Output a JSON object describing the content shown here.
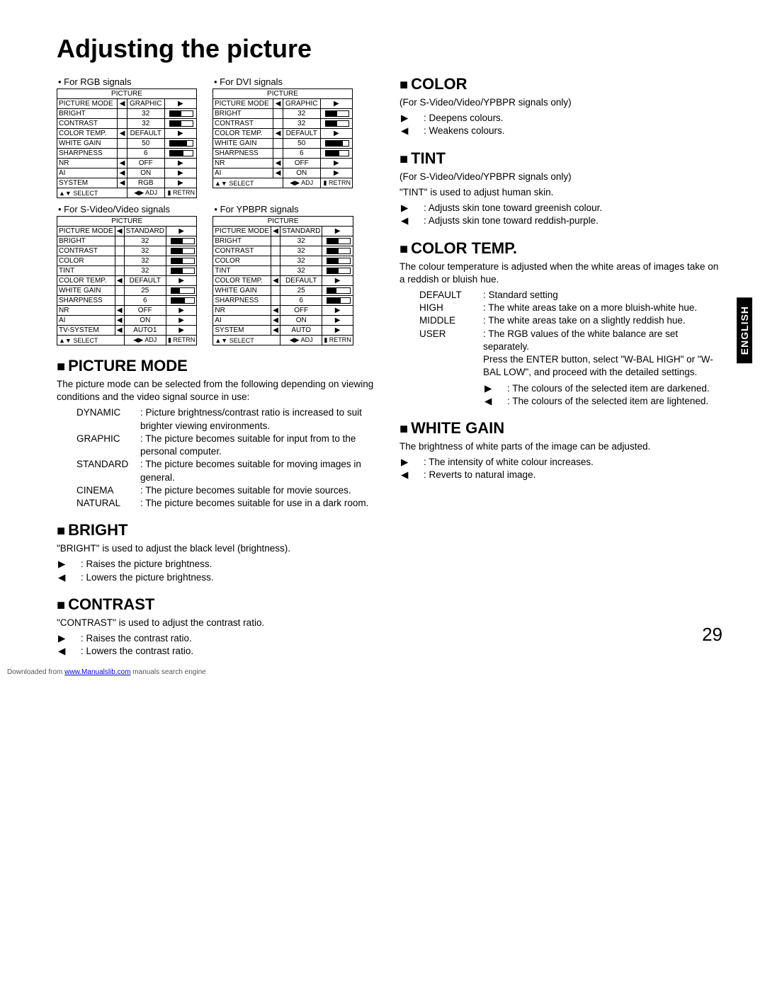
{
  "page": {
    "title": "Adjusting the picture",
    "number": "29",
    "lang_tab": "ENGLISH"
  },
  "footer": {
    "prefix": "Downloaded from ",
    "link": "www.Manualslib.com",
    "suffix": " manuals search engine"
  },
  "osd_header": "PICTURE",
  "osd_bottom": {
    "select": "SELECT",
    "adj": "ADJ",
    "retrn": "RETRN"
  },
  "tables": {
    "rgb": {
      "caption": "For RGB signals",
      "rows": [
        {
          "label": "PICTURE MODE",
          "left": "◀",
          "value": "GRAPHIC",
          "right": "▶"
        },
        {
          "label": "BRIGHT",
          "value": "32",
          "slider": 50
        },
        {
          "label": "CONTRAST",
          "value": "32",
          "slider": 50
        },
        {
          "label": "COLOR TEMP.",
          "left": "◀",
          "value": "DEFAULT",
          "right": "▶"
        },
        {
          "label": "WHITE GAIN",
          "value": "50",
          "slider": 75
        },
        {
          "label": "SHARPNESS",
          "value": "6",
          "slider": 60
        },
        {
          "label": "NR",
          "left": "◀",
          "value": "OFF",
          "right": "▶"
        },
        {
          "label": "AI",
          "left": "◀",
          "value": "ON",
          "right": "▶"
        },
        {
          "label": "SYSTEM",
          "left": "◀",
          "value": "RGB",
          "right": "▶"
        }
      ]
    },
    "dvi": {
      "caption": "For DVI signals",
      "rows": [
        {
          "label": "PICTURE MODE",
          "left": "◀",
          "value": "GRAPHIC",
          "right": "▶"
        },
        {
          "label": "BRIGHT",
          "value": "32",
          "slider": 50
        },
        {
          "label": "CONTRAST",
          "value": "32",
          "slider": 50
        },
        {
          "label": "COLOR TEMP.",
          "left": "◀",
          "value": "DEFAULT",
          "right": "▶"
        },
        {
          "label": "WHITE GAIN",
          "value": "50",
          "slider": 75
        },
        {
          "label": "SHARPNESS",
          "value": "6",
          "slider": 60
        },
        {
          "label": "NR",
          "left": "◀",
          "value": "OFF",
          "right": "▶"
        },
        {
          "label": "AI",
          "left": "◀",
          "value": "ON",
          "right": "▶"
        }
      ]
    },
    "svideo": {
      "caption": "For S-Video/Video signals",
      "rows": [
        {
          "label": "PICTURE MODE",
          "left": "◀",
          "value": "STANDARD",
          "right": "▶"
        },
        {
          "label": "BRIGHT",
          "value": "32",
          "slider": 50
        },
        {
          "label": "CONTRAST",
          "value": "32",
          "slider": 50
        },
        {
          "label": "COLOR",
          "value": "32",
          "slider": 50
        },
        {
          "label": "TINT",
          "value": "32",
          "slider": 50
        },
        {
          "label": "COLOR TEMP.",
          "left": "◀",
          "value": "DEFAULT",
          "right": "▶"
        },
        {
          "label": "WHITE GAIN",
          "value": "25",
          "slider": 40
        },
        {
          "label": "SHARPNESS",
          "value": "6",
          "slider": 60
        },
        {
          "label": "NR",
          "left": "◀",
          "value": "OFF",
          "right": "▶"
        },
        {
          "label": "AI",
          "left": "◀",
          "value": "ON",
          "right": "▶"
        },
        {
          "label": "TV-SYSTEM",
          "left": "◀",
          "value": "AUTO1",
          "right": "▶"
        }
      ]
    },
    "ypbpr": {
      "caption": "For YPBPR signals",
      "rows": [
        {
          "label": "PICTURE MODE",
          "left": "◀",
          "value": "STANDARD",
          "right": "▶"
        },
        {
          "label": "BRIGHT",
          "value": "32",
          "slider": 50
        },
        {
          "label": "CONTRAST",
          "value": "32",
          "slider": 50
        },
        {
          "label": "COLOR",
          "value": "32",
          "slider": 50
        },
        {
          "label": "TINT",
          "value": "32",
          "slider": 50
        },
        {
          "label": "COLOR TEMP.",
          "left": "◀",
          "value": "DEFAULT",
          "right": "▶"
        },
        {
          "label": "WHITE GAIN",
          "value": "25",
          "slider": 40
        },
        {
          "label": "SHARPNESS",
          "value": "6",
          "slider": 60
        },
        {
          "label": "NR",
          "left": "◀",
          "value": "OFF",
          "right": "▶"
        },
        {
          "label": "AI",
          "left": "◀",
          "value": "ON",
          "right": "▶"
        },
        {
          "label": "SYSTEM",
          "left": "◀",
          "value": "AUTO",
          "right": "▶"
        }
      ]
    }
  },
  "sections": {
    "picture_mode": {
      "title": "PICTURE MODE",
      "intro": "The picture mode can be selected from the following depending on viewing conditions and the video signal source in use:",
      "items": [
        {
          "term": "DYNAMIC",
          "desc": ": Picture brightness/contrast ratio is increased to suit brighter viewing environments."
        },
        {
          "term": "GRAPHIC",
          "desc": ": The picture becomes suitable for input from to the personal computer."
        },
        {
          "term": "STANDARD",
          "desc": ": The picture becomes suitable for moving images in general."
        },
        {
          "term": "CINEMA",
          "desc": ": The picture becomes suitable for movie sources."
        },
        {
          "term": "NATURAL",
          "desc": ": The picture becomes suitable for use in a dark room."
        }
      ]
    },
    "bright": {
      "title": "BRIGHT",
      "intro": "\"BRIGHT\" is used to adjust the black level (brightness).",
      "right": ": Raises the picture brightness.",
      "left": ": Lowers the picture brightness."
    },
    "contrast": {
      "title": "CONTRAST",
      "intro": "\"CONTRAST\" is used to adjust the contrast ratio.",
      "right": ": Raises the contrast ratio.",
      "left": ": Lowers the contrast ratio."
    },
    "color": {
      "title": "COLOR",
      "note": "(For S-Video/Video/YPBPR signals only)",
      "right": ": Deepens colours.",
      "left": ": Weakens colours."
    },
    "tint": {
      "title": "TINT",
      "note": "(For S-Video/Video/YPBPR signals only)",
      "intro": "\"TINT\" is used to adjust human skin.",
      "right": ": Adjusts skin tone toward greenish colour.",
      "left": ": Adjusts skin tone toward reddish-purple."
    },
    "color_temp": {
      "title": "COLOR TEMP.",
      "intro": "The colour temperature is adjusted when the white areas of images take on a reddish or bluish hue.",
      "items": [
        {
          "term": "DEFAULT",
          "desc": ": Standard setting"
        },
        {
          "term": "HIGH",
          "desc": ": The white areas take on a more bluish-white hue."
        },
        {
          "term": "MIDDLE",
          "desc": ": The white areas take on a slightly reddish hue."
        },
        {
          "term": "USER",
          "desc": ": The RGB values of the white balance are set separately."
        }
      ],
      "user_extra": "Press the ENTER button, select \"W-BAL HIGH\" or \"W-BAL LOW\", and proceed with the detailed settings.",
      "right": ": The colours of the selected item are darkened.",
      "left": ": The colours of the selected item are lightened."
    },
    "white_gain": {
      "title": "WHITE GAIN",
      "intro": "The brightness of white parts of the image can be adjusted.",
      "right": ": The intensity of white colour increases.",
      "left": ": Reverts to natural image."
    }
  }
}
